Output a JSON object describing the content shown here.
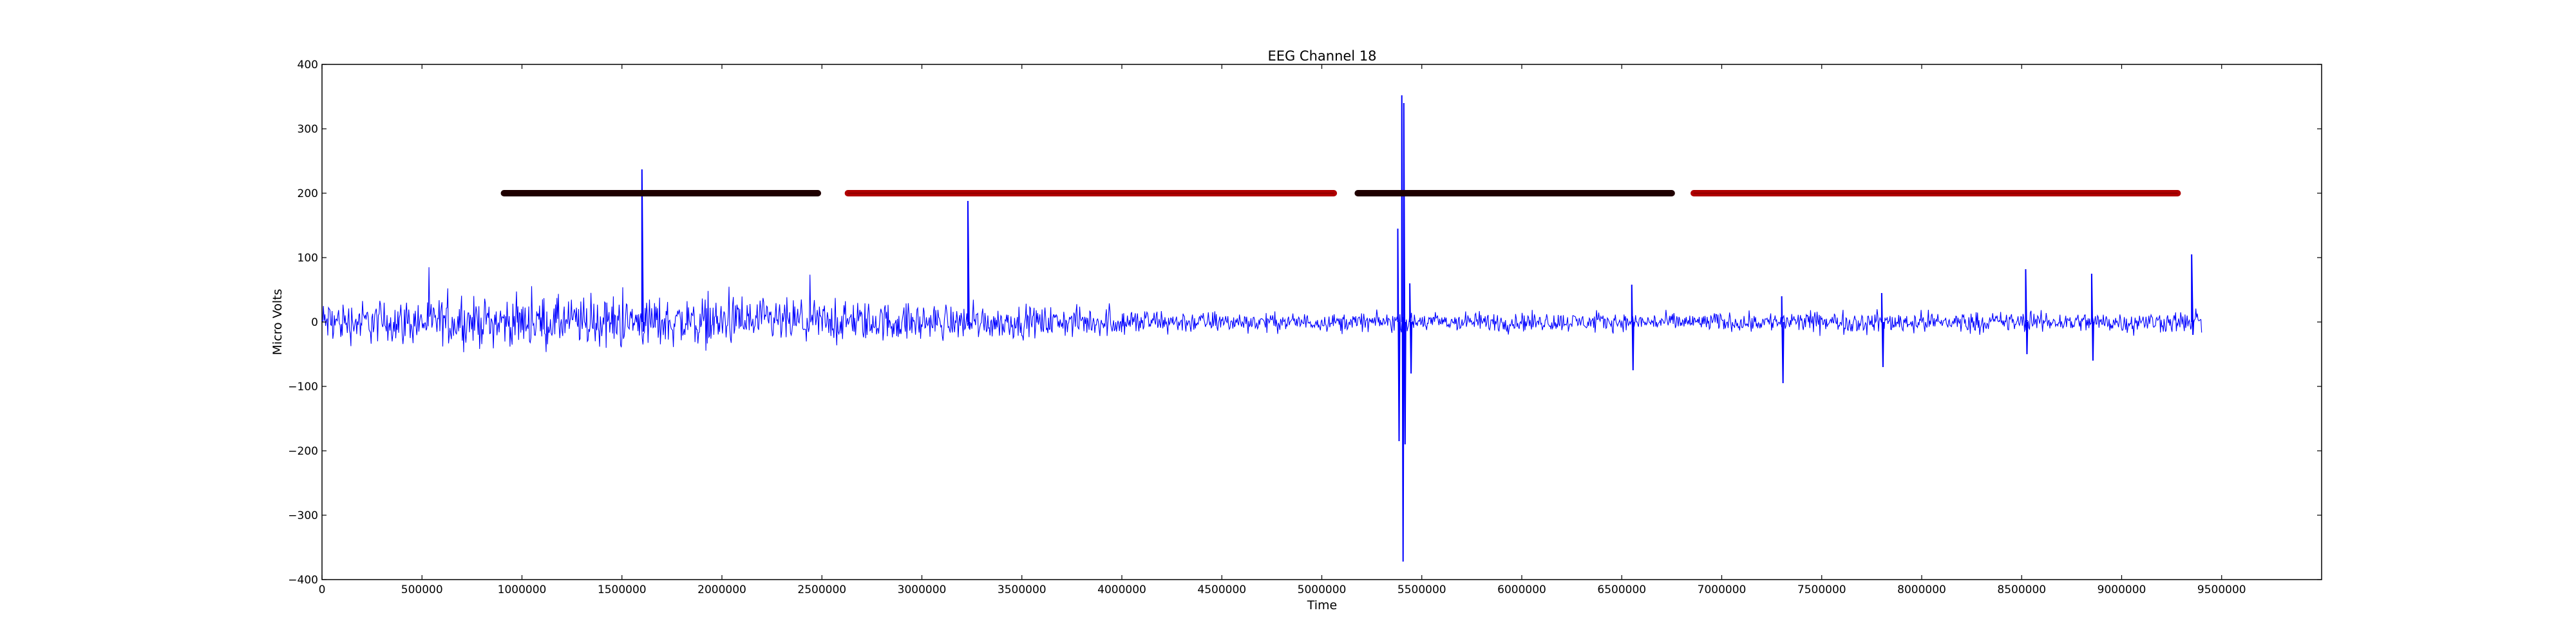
{
  "chart_data": {
    "type": "line",
    "title": "EEG Channel 18",
    "xlabel": "Time",
    "ylabel": "Micro Volts",
    "xlim": [
      0,
      10000000
    ],
    "ylim": [
      -400,
      400
    ],
    "grid": false,
    "x_ticks": [
      0,
      500000,
      1000000,
      1500000,
      2000000,
      2500000,
      3000000,
      3500000,
      4000000,
      4500000,
      5000000,
      5500000,
      6000000,
      6500000,
      7000000,
      7500000,
      8000000,
      8500000,
      9000000,
      9500000
    ],
    "x_tick_labels": [
      "0",
      "500000",
      "1000000",
      "1500000",
      "2000000",
      "2500000",
      "3000000",
      "3500000",
      "4000000",
      "4500000",
      "5000000",
      "5500000",
      "6000000",
      "6500000",
      "7000000",
      "7500000",
      "8000000",
      "8500000",
      "9000000",
      "9500000"
    ],
    "y_ticks": [
      -400,
      -300,
      -200,
      -100,
      0,
      100,
      200,
      300,
      400
    ],
    "y_tick_labels": [
      "−400",
      "−300",
      "−200",
      "−100",
      "0",
      "100",
      "200",
      "300",
      "400"
    ],
    "series": [
      {
        "color": "#0000ff",
        "x_range": [
          0,
          9400000
        ],
        "envelope": [
          {
            "x": 0,
            "amp": 30
          },
          {
            "x": 500000,
            "amp": 32
          },
          {
            "x": 1000000,
            "amp": 34
          },
          {
            "x": 1500000,
            "amp": 36
          },
          {
            "x": 2000000,
            "amp": 34
          },
          {
            "x": 2500000,
            "amp": 30
          },
          {
            "x": 3000000,
            "amp": 26
          },
          {
            "x": 3500000,
            "amp": 22
          },
          {
            "x": 4000000,
            "amp": 20
          },
          {
            "x": 4500000,
            "amp": 14
          },
          {
            "x": 5000000,
            "amp": 12
          },
          {
            "x": 5500000,
            "amp": 14
          },
          {
            "x": 6000000,
            "amp": 14
          },
          {
            "x": 6500000,
            "amp": 12
          },
          {
            "x": 7000000,
            "amp": 13
          },
          {
            "x": 7500000,
            "amp": 15
          },
          {
            "x": 8000000,
            "amp": 15
          },
          {
            "x": 8500000,
            "amp": 14
          },
          {
            "x": 9000000,
            "amp": 14
          },
          {
            "x": 9400000,
            "amp": 16
          }
        ],
        "spikes": [
          {
            "x": 1600000,
            "max": 237,
            "min": -15
          },
          {
            "x": 3230000,
            "max": 188,
            "min": -10
          },
          {
            "x": 5380000,
            "max": 145,
            "min": -185
          },
          {
            "x": 5400000,
            "max": 352,
            "min": -372
          },
          {
            "x": 5410000,
            "max": 340,
            "min": -190
          },
          {
            "x": 5440000,
            "max": 60,
            "min": -80
          },
          {
            "x": 6550000,
            "max": 58,
            "min": -75
          },
          {
            "x": 7300000,
            "max": 40,
            "min": -95
          },
          {
            "x": 7800000,
            "max": 45,
            "min": -70
          },
          {
            "x": 8520000,
            "max": 82,
            "min": -50
          },
          {
            "x": 8850000,
            "max": 75,
            "min": -60
          },
          {
            "x": 9350000,
            "max": 105,
            "min": -20
          }
        ]
      }
    ],
    "markers": {
      "y": 200,
      "segments": [
        {
          "x_start": 910000,
          "x_end": 2480000,
          "color": "#200000"
        },
        {
          "x_start": 2630000,
          "x_end": 5060000,
          "color": "#b00000"
        },
        {
          "x_start": 5180000,
          "x_end": 6750000,
          "color": "#200000"
        },
        {
          "x_start": 6860000,
          "x_end": 9280000,
          "color": "#b00000"
        }
      ]
    }
  }
}
